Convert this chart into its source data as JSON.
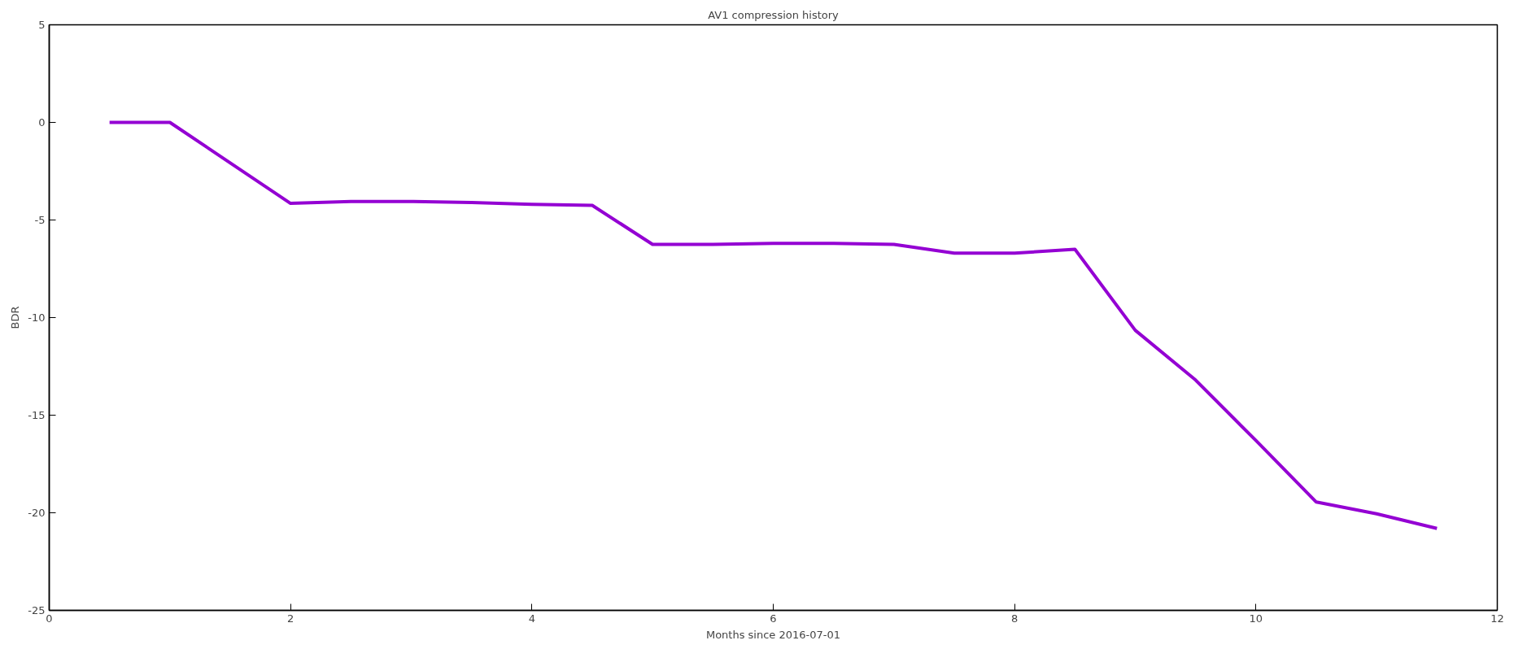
{
  "chart_data": {
    "type": "line",
    "title": "AV1 compression history",
    "xlabel": "Months since 2016-07-01",
    "ylabel": "BDR",
    "x": [
      0.5,
      1,
      2,
      2.5,
      3,
      3.5,
      4,
      4.5,
      5,
      5.5,
      6,
      6.5,
      7,
      7.5,
      8,
      8.5,
      9,
      9.5,
      10,
      10.5,
      11,
      11.5
    ],
    "series": [
      {
        "color": "#9400d3",
        "values": [
          0,
          0,
          -4.15,
          -4.05,
          -4.05,
          -4.1,
          -4.2,
          -4.25,
          -6.25,
          -6.25,
          -6.2,
          -6.2,
          -6.25,
          -6.7,
          -6.7,
          -6.5,
          -10.65,
          -13.2,
          -16.3,
          -19.45,
          -20.05,
          -20.8
        ]
      }
    ],
    "xlim": [
      0,
      12
    ],
    "ylim": [
      -25,
      5
    ],
    "xticks": [
      0,
      2,
      4,
      6,
      8,
      10,
      12
    ],
    "yticks": [
      -25,
      -20,
      -15,
      -10,
      -5,
      0,
      5
    ],
    "line_style": "solid"
  }
}
